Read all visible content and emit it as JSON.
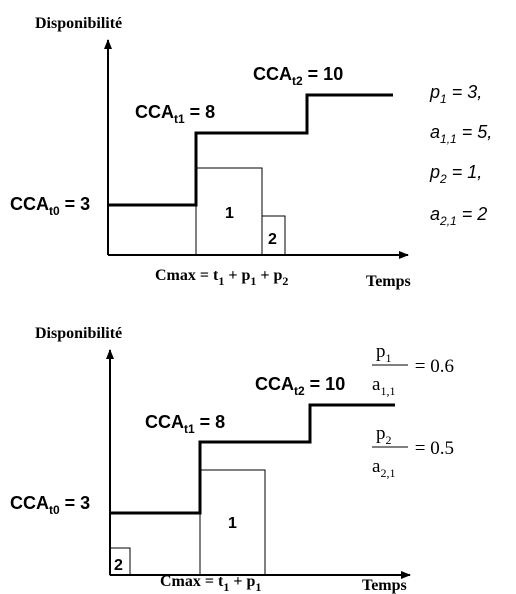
{
  "panels": [
    {
      "title": "Disponibilité",
      "x_label": "Temps",
      "levels": [
        [
          "CCA",
          "t0",
          " = 3"
        ],
        [
          "CCA",
          "t1",
          " = 8"
        ],
        [
          "CCA",
          "t2",
          " = 10"
        ]
      ],
      "cmax": [
        "Cmax = t",
        "1",
        " + p",
        "1",
        " + p",
        "2"
      ],
      "boxes": [
        "1",
        "2"
      ],
      "notes": [
        [
          "p",
          "1",
          " = 3,"
        ],
        [
          "a",
          "1,1",
          " = 5,"
        ],
        [
          "p",
          "2",
          " = 1,"
        ],
        [
          "a",
          "2,1",
          " = 2"
        ]
      ]
    },
    {
      "title": "Disponibilité",
      "x_label": "Temps",
      "levels": [
        [
          "CCA",
          "t0",
          " = 3"
        ],
        [
          "CCA",
          "t1",
          " = 8"
        ],
        [
          "CCA",
          "t2",
          " = 10"
        ]
      ],
      "cmax": [
        "Cmax = t",
        "1",
        " + p",
        "1"
      ],
      "boxes": [
        "1",
        "2"
      ],
      "fractions": [
        {
          "num": [
            "p",
            "1"
          ],
          "den": [
            "a",
            "1,1"
          ],
          "value": " = 0.6"
        },
        {
          "num": [
            "p",
            "2"
          ],
          "den": [
            "a",
            "2,1"
          ],
          "value": " = 0.5"
        }
      ]
    }
  ]
}
